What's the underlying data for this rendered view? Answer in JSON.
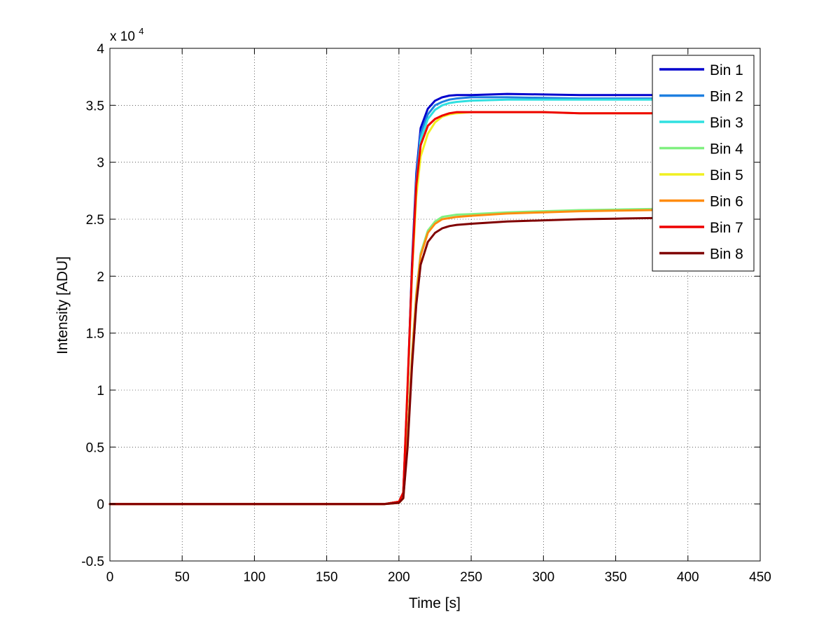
{
  "chart_data": {
    "type": "line",
    "xlabel": "Time [s]",
    "ylabel": "Intensity [ADU]",
    "y_multiplier_base": "x 10",
    "y_multiplier_exp": "4",
    "xlim": [
      0,
      450
    ],
    "ylim": [
      -0.5,
      4
    ],
    "xticks": [
      0,
      50,
      100,
      150,
      200,
      250,
      300,
      350,
      400,
      450
    ],
    "yticks": [
      -0.5,
      0,
      0.5,
      1,
      1.5,
      2,
      2.5,
      3,
      3.5,
      4
    ],
    "xtick_labels": [
      "0",
      "50",
      "100",
      "150",
      "200",
      "250",
      "300",
      "350",
      "400",
      "450"
    ],
    "ytick_labels": [
      "-0.5",
      "0",
      "0.5",
      "1",
      "1.5",
      "2",
      "2.5",
      "3",
      "3.5",
      "4"
    ],
    "grid": true,
    "legend_position": "top-right",
    "series": [
      {
        "name": "Bin 1",
        "color": "#0000cd",
        "x": [
          0,
          190,
          200,
          203,
          206,
          209,
          212,
          215,
          220,
          225,
          230,
          235,
          240,
          250,
          275,
          300,
          325,
          350,
          375
        ],
        "y": [
          0,
          0,
          0.02,
          0.1,
          1.0,
          2.1,
          2.9,
          3.3,
          3.47,
          3.54,
          3.57,
          3.585,
          3.59,
          3.59,
          3.6,
          3.595,
          3.59,
          3.59,
          3.59
        ]
      },
      {
        "name": "Bin 2",
        "color": "#1e7fe0",
        "x": [
          0,
          190,
          200,
          203,
          206,
          209,
          212,
          215,
          220,
          225,
          230,
          235,
          240,
          250,
          275,
          300,
          325,
          350,
          375
        ],
        "y": [
          0,
          0,
          0.02,
          0.1,
          1.0,
          2.05,
          2.85,
          3.25,
          3.42,
          3.5,
          3.53,
          3.55,
          3.56,
          3.57,
          3.57,
          3.565,
          3.56,
          3.56,
          3.56
        ]
      },
      {
        "name": "Bin 3",
        "color": "#30e0e0",
        "x": [
          0,
          190,
          200,
          203,
          206,
          209,
          212,
          215,
          220,
          225,
          230,
          235,
          240,
          250,
          275,
          300,
          325,
          350,
          375
        ],
        "y": [
          0,
          0,
          0.02,
          0.1,
          1.0,
          2.0,
          2.8,
          3.2,
          3.38,
          3.46,
          3.5,
          3.52,
          3.53,
          3.54,
          3.55,
          3.55,
          3.55,
          3.55,
          3.55
        ]
      },
      {
        "name": "Bin 4",
        "color": "#80f080",
        "x": [
          0,
          190,
          200,
          203,
          206,
          209,
          212,
          215,
          220,
          225,
          230,
          235,
          240,
          250,
          275,
          300,
          325,
          350,
          375
        ],
        "y": [
          0,
          0,
          0.01,
          0.05,
          0.55,
          1.3,
          1.85,
          2.2,
          2.4,
          2.48,
          2.52,
          2.53,
          2.54,
          2.545,
          2.56,
          2.57,
          2.58,
          2.585,
          2.59
        ]
      },
      {
        "name": "Bin 5",
        "color": "#f0f020",
        "x": [
          0,
          190,
          200,
          203,
          206,
          209,
          212,
          215,
          220,
          225,
          230,
          235,
          240,
          250,
          275,
          300,
          325,
          350,
          375
        ],
        "y": [
          0,
          0,
          0.02,
          0.1,
          1.0,
          2.0,
          2.7,
          3.05,
          3.25,
          3.35,
          3.4,
          3.42,
          3.43,
          3.44,
          3.44,
          3.44,
          3.43,
          3.43,
          3.43
        ]
      },
      {
        "name": "Bin 6",
        "color": "#ff8c10",
        "x": [
          0,
          190,
          200,
          203,
          206,
          209,
          212,
          215,
          220,
          225,
          230,
          235,
          240,
          250,
          275,
          300,
          325,
          350,
          375
        ],
        "y": [
          0,
          0,
          0.01,
          0.05,
          0.55,
          1.28,
          1.83,
          2.18,
          2.38,
          2.46,
          2.5,
          2.51,
          2.52,
          2.53,
          2.55,
          2.56,
          2.57,
          2.575,
          2.58
        ]
      },
      {
        "name": "Bin 7",
        "color": "#ee0000",
        "x": [
          0,
          190,
          200,
          203,
          206,
          209,
          212,
          215,
          220,
          225,
          230,
          235,
          240,
          250,
          275,
          300,
          325,
          350,
          375
        ],
        "y": [
          0,
          0,
          0.02,
          0.1,
          1.05,
          2.05,
          2.8,
          3.15,
          3.32,
          3.38,
          3.41,
          3.43,
          3.44,
          3.44,
          3.44,
          3.44,
          3.43,
          3.43,
          3.43
        ]
      },
      {
        "name": "Bin 8",
        "color": "#800000",
        "x": [
          0,
          190,
          200,
          203,
          206,
          209,
          212,
          215,
          220,
          225,
          230,
          235,
          240,
          250,
          275,
          300,
          325,
          350,
          375
        ],
        "y": [
          0,
          0,
          0.01,
          0.05,
          0.5,
          1.2,
          1.75,
          2.1,
          2.3,
          2.38,
          2.42,
          2.44,
          2.45,
          2.46,
          2.48,
          2.49,
          2.5,
          2.505,
          2.51
        ]
      }
    ]
  }
}
